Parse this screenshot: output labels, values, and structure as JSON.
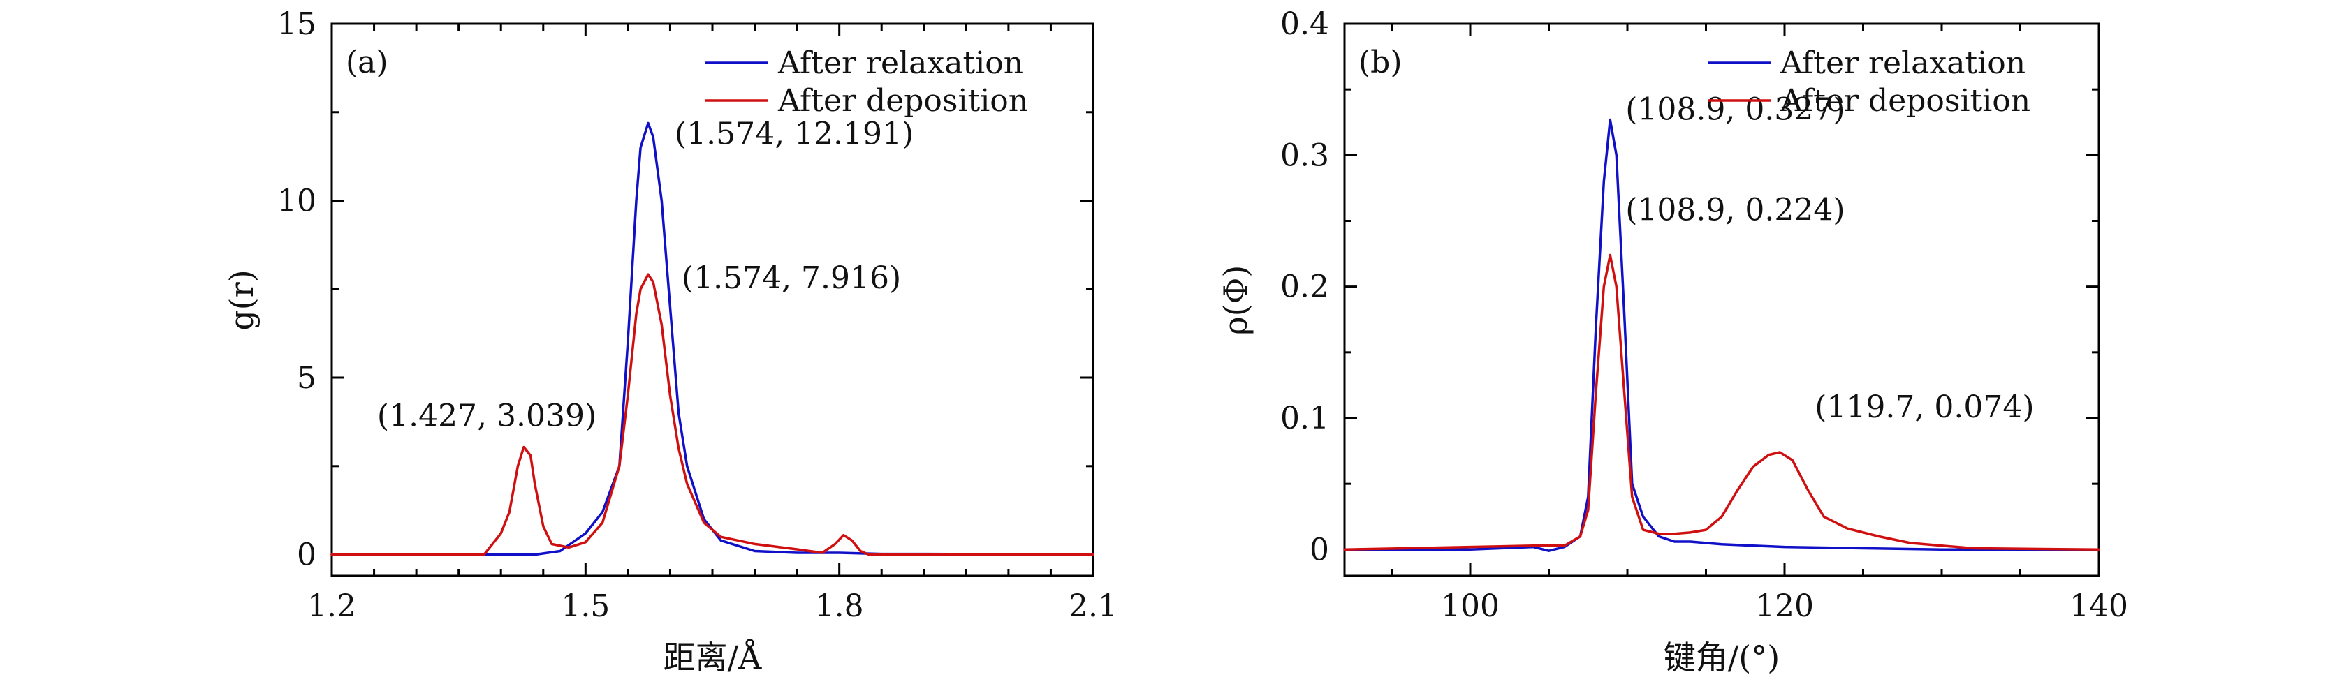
{
  "chart_data": [
    {
      "type": "line",
      "panel_label": "(a)",
      "xlabel": "距离/Å",
      "ylabel": "g(r)",
      "xlim": [
        1.2,
        2.1
      ],
      "ylim": [
        -0.6,
        15
      ],
      "xticks": [
        1.2,
        1.5,
        1.8,
        2.1
      ],
      "xtick_labels": [
        "1.2",
        "1.5",
        "1.8",
        "2.1"
      ],
      "yticks": [
        0,
        5,
        10,
        15
      ],
      "ytick_labels": [
        "0",
        "5",
        "10",
        "15"
      ],
      "legend_position": "top-right",
      "series": [
        {
          "name": "After relaxation",
          "color": "#1010c8",
          "x": [
            1.2,
            1.35,
            1.4,
            1.44,
            1.47,
            1.5,
            1.52,
            1.54,
            1.55,
            1.56,
            1.565,
            1.574,
            1.58,
            1.59,
            1.6,
            1.61,
            1.62,
            1.64,
            1.66,
            1.7,
            1.75,
            1.8,
            1.85,
            1.9,
            2.0,
            2.1
          ],
          "y": [
            0,
            0,
            0,
            0,
            0.1,
            0.6,
            1.2,
            2.5,
            6.0,
            10.0,
            11.5,
            12.191,
            11.8,
            10.0,
            7.0,
            4.0,
            2.5,
            1.0,
            0.4,
            0.1,
            0.05,
            0.05,
            0.02,
            0.02,
            0.01,
            0.01
          ]
        },
        {
          "name": "After deposition",
          "color": "#d01010",
          "x": [
            1.2,
            1.38,
            1.4,
            1.41,
            1.42,
            1.427,
            1.435,
            1.44,
            1.45,
            1.46,
            1.48,
            1.5,
            1.52,
            1.54,
            1.55,
            1.56,
            1.565,
            1.574,
            1.58,
            1.59,
            1.6,
            1.61,
            1.62,
            1.64,
            1.66,
            1.7,
            1.75,
            1.78,
            1.795,
            1.805,
            1.815,
            1.825,
            1.835,
            1.85,
            1.9,
            2.0,
            2.1
          ],
          "y": [
            0,
            0,
            0.6,
            1.2,
            2.5,
            3.039,
            2.8,
            2.0,
            0.8,
            0.3,
            0.2,
            0.35,
            0.9,
            2.5,
            4.5,
            6.8,
            7.5,
            7.916,
            7.7,
            6.5,
            4.5,
            3.0,
            2.0,
            0.9,
            0.5,
            0.3,
            0.15,
            0.05,
            0.3,
            0.55,
            0.4,
            0.1,
            0,
            0,
            0,
            0,
            0
          ]
        }
      ],
      "annotations": [
        {
          "text": "(1.574, 12.191)",
          "x": 1.574,
          "y": 12.191
        },
        {
          "text": "(1.574, 7.916)",
          "x": 1.574,
          "y": 7.916
        },
        {
          "text": "(1.427, 3.039)",
          "x": 1.427,
          "y": 3.039
        }
      ]
    },
    {
      "type": "line",
      "panel_label": "(b)",
      "xlabel": "键角/(°)",
      "ylabel": "ρ(Φ)",
      "xlim": [
        92,
        140
      ],
      "ylim": [
        -0.02,
        0.4
      ],
      "xticks": [
        100,
        120,
        140
      ],
      "xtick_labels": [
        "100",
        "120",
        "140"
      ],
      "yticks": [
        0,
        0.1,
        0.2,
        0.3,
        0.4
      ],
      "ytick_labels": [
        "0",
        "0.1",
        "0.2",
        "0.3",
        "0.4"
      ],
      "legend_position": "top-right",
      "series": [
        {
          "name": "After relaxation",
          "color": "#1010c8",
          "x": [
            92,
            100,
            104,
            105,
            106,
            107,
            107.5,
            108,
            108.5,
            108.9,
            109.3,
            109.8,
            110.3,
            111,
            112,
            113,
            114,
            116,
            118,
            120,
            125,
            130,
            140
          ],
          "y": [
            0,
            0,
            0.002,
            -0.001,
            0.002,
            0.01,
            0.04,
            0.17,
            0.28,
            0.327,
            0.3,
            0.18,
            0.05,
            0.025,
            0.01,
            0.006,
            0.006,
            0.004,
            0.003,
            0.002,
            0.001,
            0,
            0
          ]
        },
        {
          "name": "After deposition",
          "color": "#d01010",
          "x": [
            92,
            100,
            104,
            106,
            107,
            107.5,
            108,
            108.5,
            108.9,
            109.3,
            109.8,
            110.3,
            111,
            112,
            113,
            114,
            115,
            116,
            117,
            118,
            119,
            119.7,
            120.5,
            121.5,
            122.5,
            124,
            126,
            128,
            130,
            132,
            140
          ],
          "y": [
            0,
            0.002,
            0.003,
            0.003,
            0.01,
            0.03,
            0.12,
            0.2,
            0.224,
            0.2,
            0.12,
            0.04,
            0.015,
            0.012,
            0.012,
            0.013,
            0.015,
            0.025,
            0.045,
            0.063,
            0.072,
            0.074,
            0.068,
            0.045,
            0.025,
            0.016,
            0.01,
            0.005,
            0.003,
            0.001,
            0
          ]
        }
      ],
      "annotations": [
        {
          "text": "(108.9, 0.327)",
          "x": 108.9,
          "y": 0.327
        },
        {
          "text": "(108.9, 0.224)",
          "x": 108.9,
          "y": 0.224
        },
        {
          "text": "(119.7, 0.074)",
          "x": 119.7,
          "y": 0.074
        }
      ]
    }
  ]
}
